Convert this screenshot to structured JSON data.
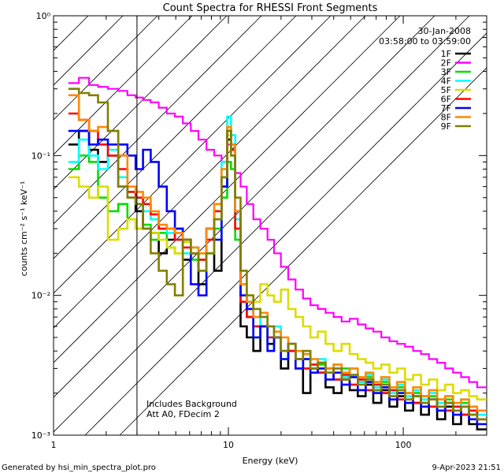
{
  "chart_data": {
    "type": "line",
    "title": "Count Spectra for RHESSI Front Segments",
    "xlabel": "Energy (keV)",
    "ylabel": "counts cm⁻² s⁻¹ keV⁻¹",
    "xscale": "log",
    "yscale": "log",
    "xlim": [
      1,
      300
    ],
    "ylim": [
      0.001,
      1
    ],
    "x_ticks": [
      {
        "value": 1,
        "label": "1"
      },
      {
        "value": 10,
        "label": "10"
      },
      {
        "value": 100,
        "label": "100"
      }
    ],
    "y_ticks": [
      {
        "value": 1,
        "label": "10⁰"
      },
      {
        "value": 0.1,
        "label": "10⁻¹"
      },
      {
        "value": 0.01,
        "label": "10⁻²"
      },
      {
        "value": 0.001,
        "label": "10⁻³"
      }
    ],
    "legend_header": [
      "30-Jan-2008",
      "03:58:00 to 03:59:00"
    ],
    "legend_position": "top-right",
    "annotations": [
      "Includes Background",
      "Att A0, FDecim 2"
    ],
    "excluded_region_keV": [
      1,
      3
    ],
    "series": [
      {
        "name": "1F",
        "color": "#000000",
        "x": [
          1.3,
          1.5,
          1.7,
          1.9,
          2.2,
          2.5,
          2.8,
          3.1,
          3.4,
          3.8,
          4.2,
          4.7,
          5.2,
          5.8,
          6.4,
          7.1,
          7.9,
          8.7,
          9.6,
          10.1,
          10.6,
          11.3,
          12.2,
          13.3,
          14.5,
          16,
          17.5,
          19,
          21,
          23,
          25.5,
          28,
          31,
          34,
          38,
          42,
          47,
          52,
          58,
          64,
          71,
          79,
          88,
          97,
          108,
          120,
          133,
          148,
          165,
          183,
          203,
          226,
          250,
          280
        ],
        "y": [
          0.12,
          0.15,
          0.11,
          0.09,
          0.1,
          0.06,
          0.05,
          0.04,
          0.03,
          0.028,
          0.02,
          0.025,
          0.03,
          0.018,
          0.02,
          0.012,
          0.03,
          0.015,
          0.06,
          0.13,
          0.11,
          0.03,
          0.006,
          0.005,
          0.004,
          0.006,
          0.0045,
          0.005,
          0.003,
          0.004,
          0.0035,
          0.002,
          0.003,
          0.0028,
          0.0022,
          0.002,
          0.0025,
          0.0021,
          0.0019,
          0.0023,
          0.0017,
          0.0021,
          0.0016,
          0.0019,
          0.0015,
          0.0017,
          0.0014,
          0.0018,
          0.0013,
          0.0016,
          0.0012,
          0.0014,
          0.0012,
          0.0011
        ]
      },
      {
        "name": "2F",
        "color": "#ff00ff",
        "x": [
          1.3,
          1.5,
          1.7,
          1.9,
          2.2,
          2.5,
          2.8,
          3.1,
          3.4,
          3.8,
          4.2,
          4.7,
          5.2,
          5.8,
          6.4,
          7.1,
          7.9,
          8.7,
          9.6,
          10.1,
          10.6,
          11.3,
          12.2,
          13.3,
          14.5,
          16,
          17.5,
          19,
          21,
          23,
          25.5,
          28,
          31,
          34,
          38,
          42,
          47,
          52,
          58,
          64,
          71,
          79,
          88,
          97,
          108,
          120,
          133,
          148,
          165,
          183,
          203,
          226,
          250,
          280
        ],
        "y": [
          0.33,
          0.36,
          0.32,
          0.31,
          0.3,
          0.29,
          0.27,
          0.26,
          0.25,
          0.24,
          0.22,
          0.2,
          0.19,
          0.17,
          0.15,
          0.13,
          0.11,
          0.1,
          0.09,
          0.12,
          0.1,
          0.075,
          0.06,
          0.045,
          0.035,
          0.03,
          0.025,
          0.02,
          0.016,
          0.013,
          0.011,
          0.0095,
          0.0085,
          0.008,
          0.0075,
          0.007,
          0.0065,
          0.0068,
          0.0062,
          0.0058,
          0.0055,
          0.005,
          0.0047,
          0.0045,
          0.0043,
          0.004,
          0.0038,
          0.0035,
          0.0033,
          0.003,
          0.0028,
          0.0026,
          0.0024,
          0.0022
        ]
      },
      {
        "name": "3F",
        "color": "#00dd00",
        "x": [
          1.3,
          1.5,
          1.7,
          1.9,
          2.2,
          2.5,
          2.8,
          3.1,
          3.4,
          3.8,
          4.2,
          4.7,
          5.2,
          5.8,
          6.4,
          7.1,
          7.9,
          8.7,
          9.6,
          10.1,
          10.6,
          11.3,
          12.2,
          13.3,
          14.5,
          16,
          17.5,
          19,
          21,
          23,
          25.5,
          28,
          31,
          34,
          38,
          42,
          47,
          52,
          58,
          64,
          71,
          79,
          88,
          97,
          108,
          120,
          133,
          148,
          165,
          183,
          203,
          226,
          250,
          280
        ],
        "y": [
          0.08,
          0.1,
          0.09,
          0.05,
          0.04,
          0.045,
          0.035,
          0.03,
          0.032,
          0.025,
          0.028,
          0.022,
          0.02,
          0.025,
          0.018,
          0.02,
          0.02,
          0.03,
          0.05,
          0.09,
          0.08,
          0.025,
          0.009,
          0.007,
          0.005,
          0.006,
          0.004,
          0.005,
          0.0035,
          0.004,
          0.003,
          0.0035,
          0.003,
          0.0032,
          0.0028,
          0.0025,
          0.003,
          0.0027,
          0.0024,
          0.0026,
          0.0021,
          0.0024,
          0.0019,
          0.0022,
          0.0018,
          0.002,
          0.0017,
          0.0019,
          0.0016,
          0.0018,
          0.0015,
          0.0017,
          0.0014,
          0.0013
        ]
      },
      {
        "name": "4F",
        "color": "#00ffff",
        "x": [
          1.3,
          1.5,
          1.7,
          1.9,
          2.2,
          2.5,
          2.8,
          3.1,
          3.4,
          3.8,
          4.2,
          4.7,
          5.2,
          5.8,
          6.4,
          7.1,
          7.9,
          8.7,
          9.6,
          10.1,
          10.6,
          11.3,
          12.2,
          13.3,
          14.5,
          16,
          17.5,
          19,
          21,
          23,
          25.5,
          28,
          31,
          34,
          38,
          42,
          47,
          52,
          58,
          64,
          71,
          79,
          88,
          97,
          108,
          120,
          133,
          148,
          165,
          183,
          203,
          226,
          250,
          280
        ],
        "y": [
          0.09,
          0.13,
          0.1,
          0.08,
          0.11,
          0.07,
          0.05,
          0.045,
          0.04,
          0.035,
          0.03,
          0.028,
          0.025,
          0.02,
          0.022,
          0.018,
          0.02,
          0.04,
          0.09,
          0.19,
          0.14,
          0.035,
          0.01,
          0.008,
          0.006,
          0.007,
          0.005,
          0.006,
          0.004,
          0.0045,
          0.0035,
          0.004,
          0.003,
          0.0035,
          0.0028,
          0.0032,
          0.0026,
          0.003,
          0.0024,
          0.0027,
          0.0022,
          0.0025,
          0.002,
          0.0023,
          0.0019,
          0.0021,
          0.0018,
          0.002,
          0.0017,
          0.0019,
          0.0016,
          0.0018,
          0.0015,
          0.0014
        ]
      },
      {
        "name": "5F",
        "color": "#dddd00",
        "x": [
          1.3,
          1.5,
          1.7,
          1.9,
          2.2,
          2.5,
          2.8,
          3.1,
          3.4,
          3.8,
          4.2,
          4.7,
          5.2,
          5.8,
          6.4,
          7.1,
          7.9,
          8.7,
          9.6,
          10.1,
          10.6,
          11.3,
          12.2,
          13.3,
          14.5,
          16,
          17.5,
          19,
          21,
          23,
          25.5,
          28,
          31,
          34,
          38,
          42,
          47,
          52,
          58,
          64,
          71,
          79,
          88,
          97,
          108,
          120,
          133,
          148,
          165,
          183,
          203,
          226,
          250,
          280
        ],
        "y": [
          0.07,
          0.06,
          0.05,
          0.06,
          0.025,
          0.03,
          0.035,
          0.03,
          0.03,
          0.028,
          0.025,
          0.022,
          0.02,
          0.024,
          0.02,
          0.018,
          0.02,
          0.035,
          0.07,
          0.14,
          0.1,
          0.03,
          0.012,
          0.01,
          0.009,
          0.012,
          0.01,
          0.009,
          0.011,
          0.008,
          0.007,
          0.006,
          0.005,
          0.0055,
          0.0045,
          0.004,
          0.0045,
          0.0038,
          0.0035,
          0.0033,
          0.003,
          0.0032,
          0.0028,
          0.003,
          0.0025,
          0.0027,
          0.0023,
          0.0025,
          0.0021,
          0.0023,
          0.002,
          0.0021,
          0.0019,
          0.0018
        ]
      },
      {
        "name": "6F",
        "color": "#ff0000",
        "x": [
          1.3,
          1.5,
          1.7,
          1.9,
          2.2,
          2.5,
          2.8,
          3.1,
          3.4,
          3.8,
          4.2,
          4.7,
          5.2,
          5.8,
          6.4,
          7.1,
          7.9,
          8.7,
          9.6,
          10.1,
          10.6,
          11.3,
          12.2,
          13.3,
          14.5,
          16,
          17.5,
          19,
          21,
          23,
          25.5,
          28,
          31,
          34,
          38,
          42,
          47,
          52,
          58,
          64,
          71,
          79,
          88,
          97,
          108,
          120,
          133,
          148,
          165,
          183,
          203,
          226,
          250,
          280
        ],
        "y": [
          0.2,
          0.18,
          0.15,
          0.12,
          0.1,
          0.08,
          0.055,
          0.05,
          0.045,
          0.038,
          0.03,
          0.03,
          0.025,
          0.022,
          0.02,
          0.018,
          0.025,
          0.04,
          0.07,
          0.15,
          0.11,
          0.03,
          0.009,
          0.007,
          0.006,
          0.006,
          0.005,
          0.005,
          0.004,
          0.004,
          0.0035,
          0.003,
          0.0032,
          0.0028,
          0.003,
          0.0025,
          0.0027,
          0.0023,
          0.0025,
          0.0021,
          0.0023,
          0.002,
          0.0021,
          0.0018,
          0.002,
          0.0017,
          0.0019,
          0.0016,
          0.0018,
          0.0015,
          0.0016,
          0.0014,
          0.0015,
          0.0013
        ]
      },
      {
        "name": "7F",
        "color": "#0000ff",
        "x": [
          1.3,
          1.5,
          1.7,
          1.9,
          2.2,
          2.5,
          2.8,
          3.1,
          3.4,
          3.8,
          4.2,
          4.7,
          5.2,
          5.8,
          6.4,
          7.1,
          7.9,
          8.7,
          9.6,
          10.1,
          10.6,
          11.3,
          12.2,
          13.3,
          14.5,
          16,
          17.5,
          19,
          21,
          23,
          25.5,
          28,
          31,
          34,
          38,
          42,
          47,
          52,
          58,
          64,
          71,
          79,
          88,
          97,
          108,
          120,
          133,
          148,
          165,
          183,
          203,
          226,
          250,
          280
        ],
        "y": [
          0.15,
          0.15,
          0.12,
          0.13,
          0.12,
          0.12,
          0.1,
          0.08,
          0.11,
          0.09,
          0.06,
          0.04,
          0.03,
          0.025,
          0.012,
          0.01,
          0.03,
          0.025,
          0.06,
          0.15,
          0.12,
          0.04,
          0.01,
          0.008,
          0.005,
          0.006,
          0.004,
          0.005,
          0.0035,
          0.0045,
          0.003,
          0.0035,
          0.0028,
          0.003,
          0.0025,
          0.0028,
          0.0023,
          0.0026,
          0.0021,
          0.0024,
          0.002,
          0.0022,
          0.0018,
          0.002,
          0.0017,
          0.0019,
          0.0016,
          0.0018,
          0.0015,
          0.0017,
          0.0014,
          0.0016,
          0.0013,
          0.0012
        ]
      },
      {
        "name": "8F",
        "color": "#ff8800",
        "x": [
          1.3,
          1.5,
          1.7,
          1.9,
          2.2,
          2.5,
          2.8,
          3.1,
          3.4,
          3.8,
          4.2,
          4.7,
          5.2,
          5.8,
          6.4,
          7.1,
          7.9,
          8.7,
          9.6,
          10.1,
          10.6,
          11.3,
          12.2,
          13.3,
          14.5,
          16,
          17.5,
          19,
          21,
          23,
          25.5,
          28,
          31,
          34,
          38,
          42,
          47,
          52,
          58,
          64,
          71,
          79,
          88,
          97,
          108,
          120,
          133,
          148,
          165,
          183,
          203,
          226,
          250,
          280
        ],
        "y": [
          0.27,
          0.18,
          0.15,
          0.16,
          0.15,
          0.1,
          0.06,
          0.055,
          0.05,
          0.04,
          0.032,
          0.03,
          0.028,
          0.025,
          0.022,
          0.02,
          0.03,
          0.045,
          0.08,
          0.16,
          0.12,
          0.04,
          0.012,
          0.009,
          0.007,
          0.0075,
          0.006,
          0.0055,
          0.005,
          0.0045,
          0.004,
          0.0038,
          0.0035,
          0.0033,
          0.003,
          0.0032,
          0.0028,
          0.003,
          0.0026,
          0.0028,
          0.0024,
          0.0026,
          0.0022,
          0.0024,
          0.002,
          0.0022,
          0.0019,
          0.0021,
          0.0018,
          0.0019,
          0.0017,
          0.0018,
          0.0016,
          0.0015
        ]
      },
      {
        "name": "9F",
        "color": "#808000",
        "x": [
          1.3,
          1.5,
          1.7,
          1.9,
          2.2,
          2.5,
          2.8,
          3.1,
          3.4,
          3.8,
          4.2,
          4.7,
          5.2,
          5.8,
          6.4,
          7.1,
          7.9,
          8.7,
          9.6,
          10.1,
          10.6,
          11.3,
          12.2,
          13.3,
          14.5,
          16,
          17.5,
          19,
          21,
          23,
          25.5,
          28,
          31,
          34,
          38,
          42,
          47,
          52,
          58,
          64,
          71,
          79,
          88,
          97,
          108,
          120,
          133,
          148,
          165,
          183,
          203,
          226,
          250,
          280
        ],
        "y": [
          0.3,
          0.28,
          0.27,
          0.24,
          0.15,
          0.06,
          0.05,
          0.045,
          0.03,
          0.02,
          0.015,
          0.012,
          0.01,
          0.025,
          0.02,
          0.015,
          0.02,
          0.035,
          0.07,
          0.15,
          0.1,
          0.05,
          0.015,
          0.01,
          0.008,
          0.007,
          0.006,
          0.005,
          0.004,
          0.0045,
          0.0035,
          0.004,
          0.003,
          0.0033,
          0.0028,
          0.003,
          0.0025,
          0.0027,
          0.0023,
          0.0025,
          0.0021,
          0.0023,
          0.0019,
          0.0021,
          0.0018,
          0.0019,
          0.0017,
          0.0018,
          0.0016,
          0.0017,
          0.0015,
          0.0016,
          0.0014,
          0.0013
        ]
      }
    ]
  },
  "footer": {
    "left": "Generated by hsi_min_spectra_plot.pro",
    "right": "9-Apr-2023 21:51"
  }
}
